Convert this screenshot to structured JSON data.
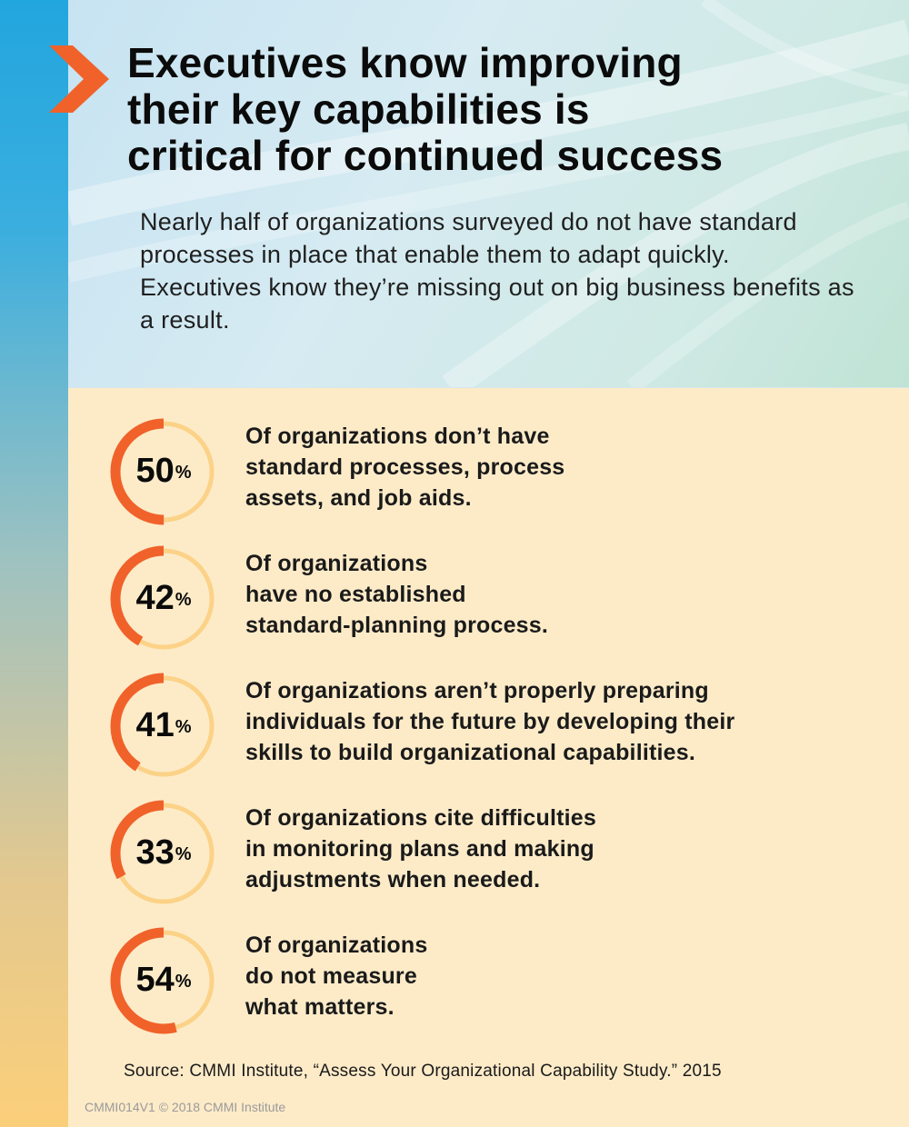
{
  "header": {
    "title_lines": [
      "Executives know improving",
      "their key capabilities is",
      "critical for continued success"
    ],
    "subtitle": "Nearly half of organizations surveyed do not have standard processes in place that enable them to adapt quickly. Executives know they’re missing out on big business benefits as a result."
  },
  "colors": {
    "accent": "#f0622a",
    "ring_track": "#fbd287",
    "background": "#fdebc8"
  },
  "percent_symbol": "%",
  "stats": [
    {
      "value": "50",
      "fraction": 0.5,
      "lines": [
        "Of organizations don’t have",
        "standard processes, process",
        "assets, and job aids."
      ]
    },
    {
      "value": "42",
      "fraction": 0.42,
      "lines": [
        "Of organizations",
        "have no established",
        "standard-planning process."
      ]
    },
    {
      "value": "41",
      "fraction": 0.41,
      "lines": [
        "Of organizations aren’t properly preparing",
        "individuals for the future by developing their",
        "skills to build organizational capabilities."
      ]
    },
    {
      "value": "33",
      "fraction": 0.33,
      "lines": [
        "Of organizations cite difficulties",
        "in monitoring plans and making",
        "adjustments when needed."
      ]
    },
    {
      "value": "54",
      "fraction": 0.54,
      "lines": [
        "Of organizations",
        "do not measure",
        "what matters."
      ]
    }
  ],
  "source": "Source:  CMMI Institute, “Assess Your Organizational Capability Study.” 2015",
  "footer_code": "CMMI014V1 © 2018 CMMI Institute"
}
